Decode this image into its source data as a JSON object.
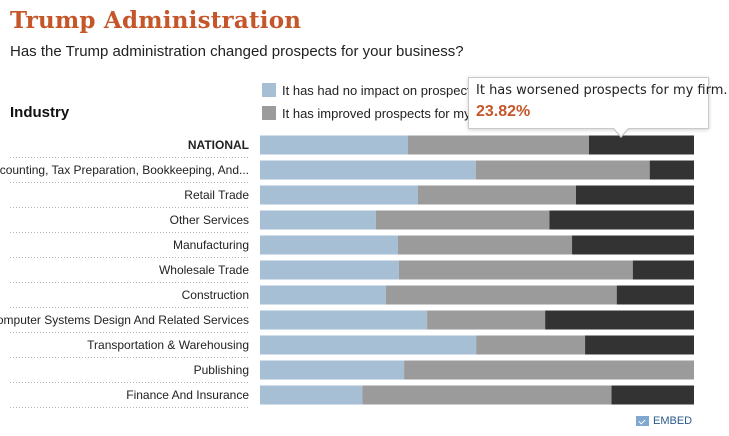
{
  "header": {
    "title": "Trump Administration",
    "subtitle": "Has the Trump administration changed prospects for your business?"
  },
  "industry_label": "Industry",
  "legend": [
    {
      "label": "It has had no impact on prospects for",
      "color": "#a6bfd4"
    },
    {
      "label": "It has improved prospects for my firm.",
      "color": "#9b9b9b"
    }
  ],
  "tooltip": {
    "label": "It has worsened prospects for my firm.:",
    "value": "23.82%"
  },
  "embed_label": "EMBED",
  "chart_data": {
    "type": "bar",
    "stacked": true,
    "orientation": "horizontal",
    "categories": [
      "NATIONAL",
      "Accounting, Tax Preparation, Bookkeeping, And...",
      "Retail Trade",
      "Other Services",
      "Manufacturing",
      "Wholesale Trade",
      "Construction",
      "Computer Systems Design And Related Services",
      "Transportation & Warehousing",
      "Publishing",
      "Finance And Insurance"
    ],
    "series": [
      {
        "name": "It has had no impact on prospects for",
        "color": "#a6bfd4",
        "values": [
          34.1,
          49.7,
          36.4,
          26.7,
          31.8,
          32.0,
          29.0,
          38.5,
          49.8,
          33.2,
          23.6
        ]
      },
      {
        "name": "It has improved prospects for my firm.",
        "color": "#9b9b9b",
        "values": [
          41.7,
          40.1,
          36.4,
          40.0,
          40.1,
          53.9,
          53.2,
          27.2,
          25.1,
          66.8,
          57.4
        ]
      },
      {
        "color": "#333333",
        "values": [
          24.2,
          10.2,
          27.2,
          33.3,
          28.1,
          14.1,
          17.8,
          34.3,
          25.1,
          0.0,
          19.0
        ]
      }
    ],
    "xlim": [
      0,
      100
    ],
    "highlight_category": "NATIONAL",
    "grid": false,
    "legend_position": "top"
  }
}
